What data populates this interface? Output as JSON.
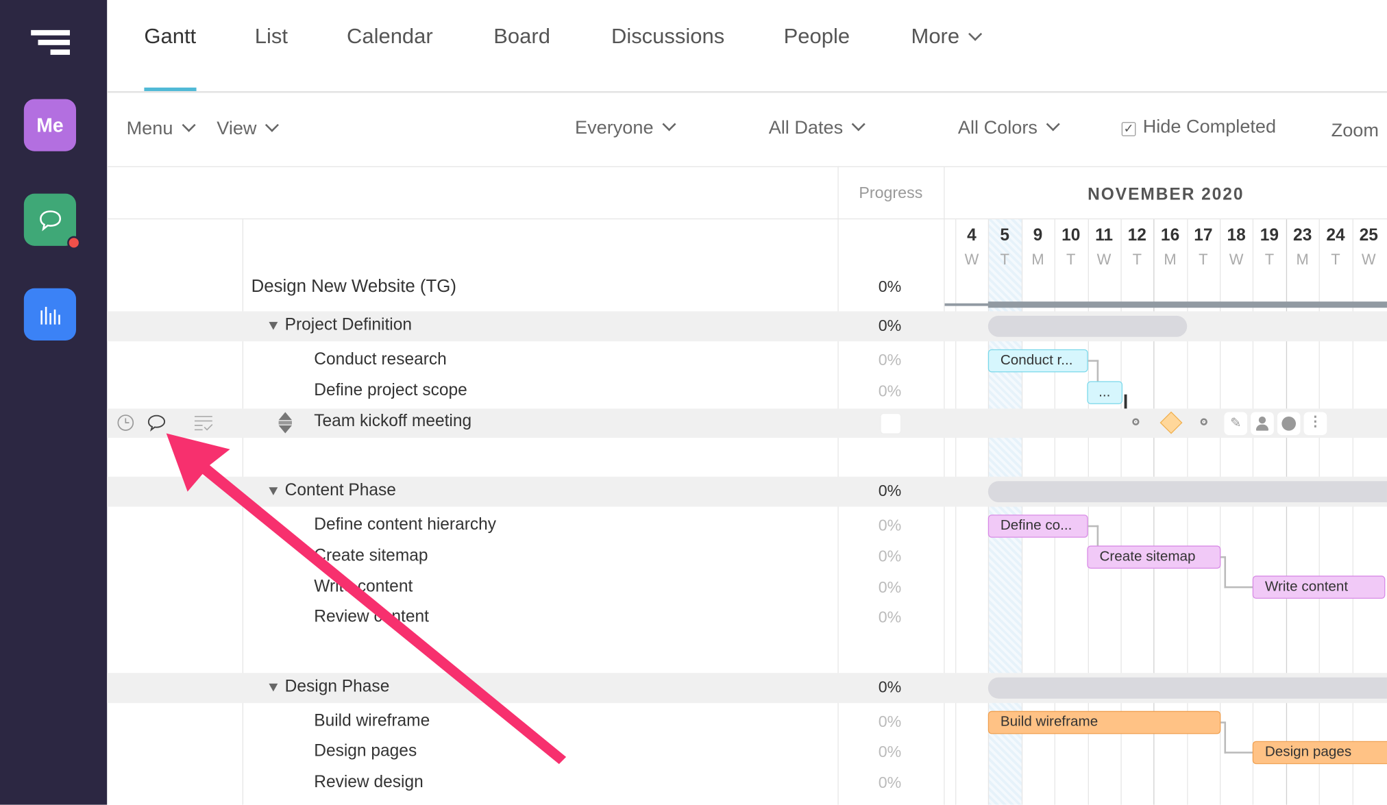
{
  "tabs": [
    {
      "label": "Gantt",
      "active": true
    },
    {
      "label": "List"
    },
    {
      "label": "Calendar"
    },
    {
      "label": "Board"
    },
    {
      "label": "Discussions"
    },
    {
      "label": "People"
    },
    {
      "label": "More"
    }
  ],
  "sidebar": {
    "me_label": "Me",
    "colors": {
      "me": "#b36fe0",
      "chat": "#3fa877",
      "reports": "#3b82f6",
      "notification": "#f0504a"
    }
  },
  "toolbar": {
    "menu": "Menu",
    "view": "View",
    "everyone": "Everyone",
    "all_dates": "All Dates",
    "all_colors": "All Colors",
    "hide_completed": "Hide Completed",
    "hide_completed_checked": true,
    "zoom": "Zoom"
  },
  "grid": {
    "progress_header": "Progress",
    "month": "NOVEMBER 2020",
    "days": [
      {
        "d": "4",
        "w": "W"
      },
      {
        "d": "5",
        "w": "T"
      },
      {
        "d": "9",
        "w": "M"
      },
      {
        "d": "10",
        "w": "T"
      },
      {
        "d": "11",
        "w": "W"
      },
      {
        "d": "12",
        "w": "T"
      },
      {
        "d": "16",
        "w": "M"
      },
      {
        "d": "17",
        "w": "T"
      },
      {
        "d": "18",
        "w": "W"
      },
      {
        "d": "19",
        "w": "T"
      },
      {
        "d": "23",
        "w": "M"
      },
      {
        "d": "24",
        "w": "T"
      },
      {
        "d": "25",
        "w": "W"
      }
    ]
  },
  "project": {
    "name": "Design New Website (TG)",
    "progress": "0%"
  },
  "groups": [
    {
      "name": "Project Definition",
      "progress": "0%",
      "tasks": [
        {
          "name": "Conduct research",
          "progress": "0%",
          "bar": "Conduct r..."
        },
        {
          "name": "Define project scope",
          "progress": "0%",
          "bar": "..."
        },
        {
          "name": "Team kickoff meeting",
          "progress": ""
        }
      ]
    },
    {
      "name": "Content Phase",
      "progress": "0%",
      "tasks": [
        {
          "name": "Define content hierarchy",
          "progress": "0%",
          "bar": "Define co..."
        },
        {
          "name": "Create sitemap",
          "progress": "0%",
          "bar": "Create sitemap"
        },
        {
          "name": "Write content",
          "progress": "0%",
          "bar": "Write content"
        },
        {
          "name": "Review content",
          "progress": "0%"
        }
      ]
    },
    {
      "name": "Design Phase",
      "progress": "0%",
      "tasks": [
        {
          "name": "Build wireframe",
          "progress": "0%",
          "bar": "Build wireframe"
        },
        {
          "name": "Design pages",
          "progress": "0%",
          "bar": "Design pages"
        },
        {
          "name": "Review design",
          "progress": "0%"
        }
      ]
    }
  ],
  "annotation": {
    "arrow_color": "#f7306e"
  }
}
